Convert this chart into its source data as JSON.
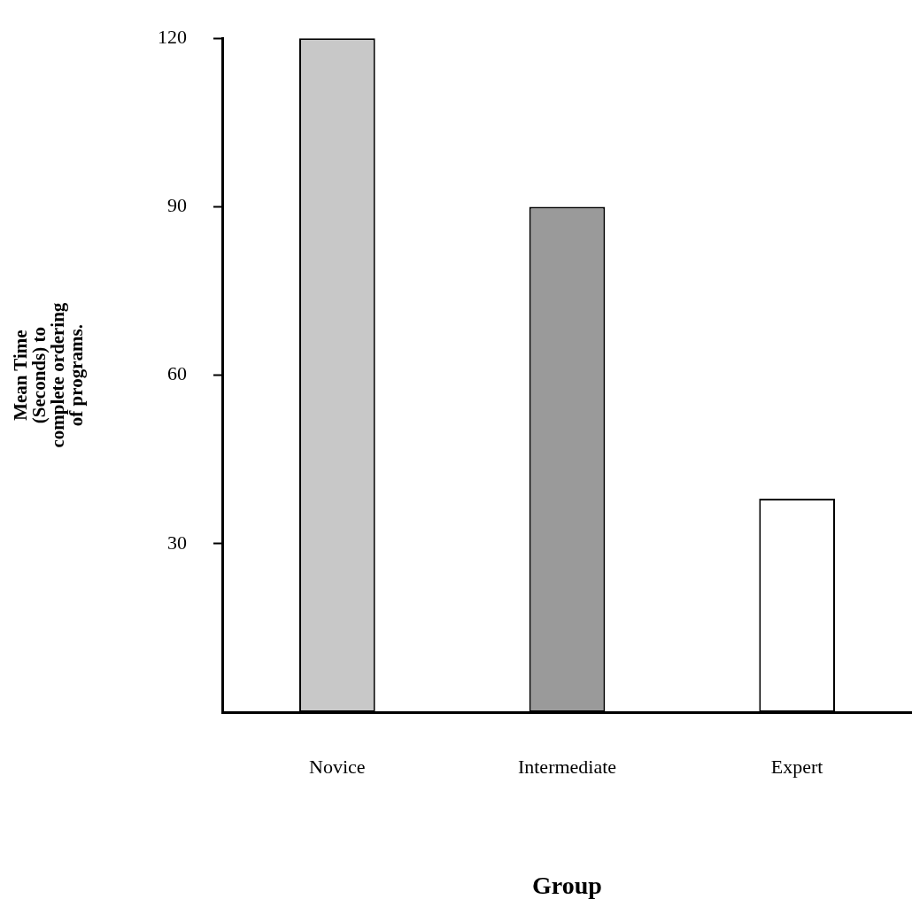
{
  "chart_data": {
    "type": "bar",
    "xlabel": "Group",
    "ylabel": "Mean Time\n(Seconds) to\ncomplete ordering\nof programs.",
    "categories": [
      "Novice",
      "Intermediate",
      "Expert"
    ],
    "values": [
      120,
      90,
      38
    ],
    "colors": [
      "#c8c8c8",
      "#9a9a9a",
      "#ffffff"
    ],
    "ylim": [
      0,
      120
    ],
    "yticks": [
      30,
      60,
      90,
      120
    ],
    "grid": false,
    "legend": false
  }
}
